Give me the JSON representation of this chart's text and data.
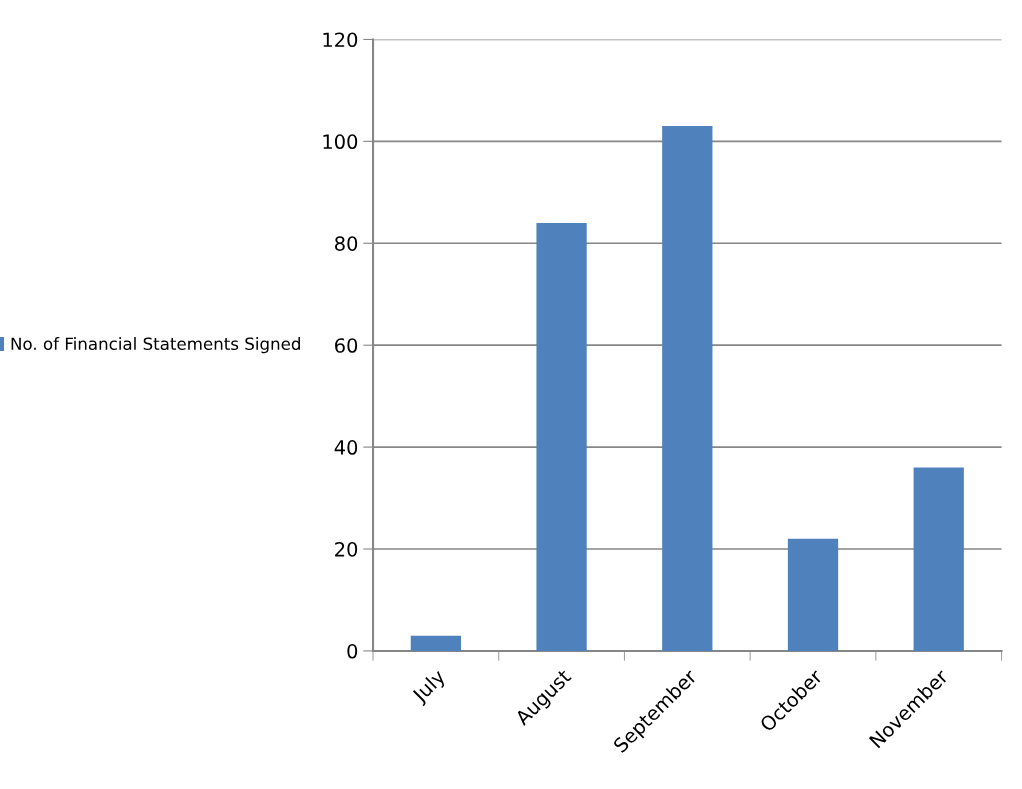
{
  "chart_data": {
    "type": "bar",
    "categories": [
      "July",
      "August",
      "September",
      "October",
      "November"
    ],
    "series": [
      {
        "name": "No. of Financial Statements Signed",
        "color": "#4f81bd",
        "values": [
          3,
          84,
          103,
          22,
          36
        ]
      }
    ],
    "ylim": [
      0,
      120
    ],
    "yticks": [
      0,
      20,
      40,
      60,
      80,
      100,
      120
    ],
    "grid": "y",
    "legend": "left"
  }
}
